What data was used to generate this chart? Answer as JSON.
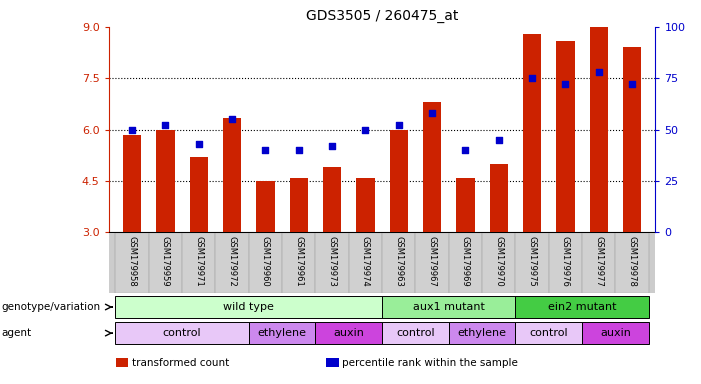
{
  "title": "GDS3505 / 260475_at",
  "samples": [
    "GSM179958",
    "GSM179959",
    "GSM179971",
    "GSM179972",
    "GSM179960",
    "GSM179961",
    "GSM179973",
    "GSM179974",
    "GSM179963",
    "GSM179967",
    "GSM179969",
    "GSM179970",
    "GSM179975",
    "GSM179976",
    "GSM179977",
    "GSM179978"
  ],
  "bar_values": [
    5.85,
    6.0,
    5.2,
    6.35,
    4.5,
    4.6,
    4.9,
    4.6,
    6.0,
    6.8,
    4.6,
    5.0,
    8.8,
    8.6,
    9.0,
    8.4
  ],
  "dot_percentiles": [
    50,
    52,
    43,
    55,
    40,
    40,
    42,
    50,
    52,
    58,
    40,
    45,
    75,
    72,
    78,
    72
  ],
  "bar_color": "#cc2200",
  "dot_color": "#0000cc",
  "ylim_left": [
    3,
    9
  ],
  "ylim_right": [
    0,
    100
  ],
  "yticks_left": [
    3,
    4.5,
    6,
    7.5,
    9
  ],
  "yticks_right": [
    0,
    25,
    50,
    75,
    100
  ],
  "genotype_groups": [
    {
      "label": "wild type",
      "start": 0,
      "end": 8,
      "color": "#ccffcc"
    },
    {
      "label": "aux1 mutant",
      "start": 8,
      "end": 12,
      "color": "#99ee99"
    },
    {
      "label": "ein2 mutant",
      "start": 12,
      "end": 16,
      "color": "#44cc44"
    }
  ],
  "agent_groups": [
    {
      "label": "control",
      "start": 0,
      "end": 4,
      "color": "#e8c8f8"
    },
    {
      "label": "ethylene",
      "start": 4,
      "end": 6,
      "color": "#cc88ee"
    },
    {
      "label": "auxin",
      "start": 6,
      "end": 8,
      "color": "#cc44dd"
    },
    {
      "label": "control",
      "start": 8,
      "end": 10,
      "color": "#e8c8f8"
    },
    {
      "label": "ethylene",
      "start": 10,
      "end": 12,
      "color": "#cc88ee"
    },
    {
      "label": "control",
      "start": 12,
      "end": 14,
      "color": "#e8c8f8"
    },
    {
      "label": "auxin",
      "start": 14,
      "end": 16,
      "color": "#cc44dd"
    }
  ],
  "bar_bottom": 3,
  "bar_width": 0.55,
  "background_color": "#ffffff",
  "label_row1": "genotype/variation",
  "label_row2": "agent",
  "legend_items": [
    {
      "label": "transformed count",
      "color": "#cc2200"
    },
    {
      "label": "percentile rank within the sample",
      "color": "#0000cc"
    }
  ]
}
